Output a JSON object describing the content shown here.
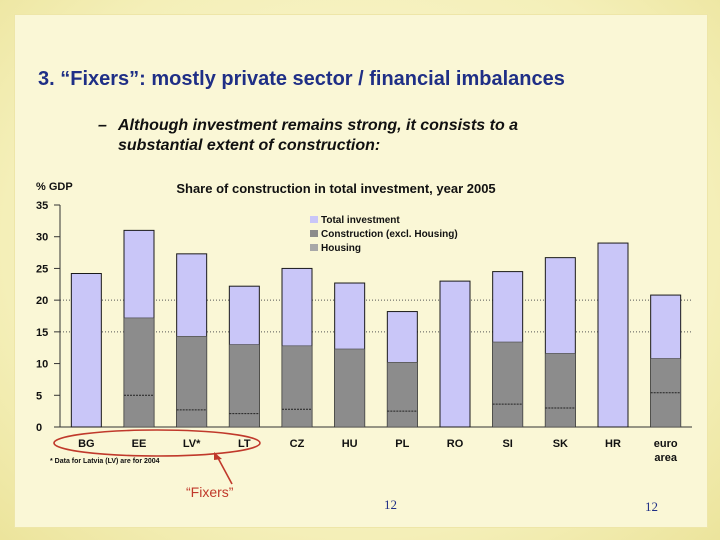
{
  "slide": {
    "title": "3. “Fixers”: mostly private sector / financial imbalances",
    "bullet_dash": "–",
    "bullet_text": "Although investment remains strong, it consists to a substantial extent of construction:",
    "fixers_label": "“Fixers”",
    "page_number_center": "12",
    "page_number_right": "12",
    "colors": {
      "title": "#1f2f86",
      "total": "#c9c6f8",
      "construction": "#8c8c8c",
      "housing": "#a8a8a8",
      "callout": "#c0392b"
    }
  },
  "chart_data": {
    "type": "bar",
    "title": "Share of construction in total investment, year 2005",
    "ylabel": "% GDP",
    "ylim": [
      0,
      35
    ],
    "yticks": [
      0,
      5,
      10,
      15,
      20,
      25,
      30,
      35
    ],
    "gridlines_at": [
      15,
      20
    ],
    "footnote": "* Data for Latvia (LV) are for 2004",
    "legend_position": "top-right",
    "categories": [
      "BG",
      "EE",
      "LV*",
      "LT",
      "CZ",
      "HU",
      "PL",
      "RO",
      "SI",
      "SK",
      "HR",
      "euro area"
    ],
    "highlighted_categories": [
      "BG",
      "EE",
      "LV*",
      "LT"
    ],
    "series": [
      {
        "name": "Total investment",
        "values": [
          24.2,
          31.0,
          27.3,
          22.2,
          25.0,
          22.7,
          18.2,
          23.0,
          24.5,
          26.7,
          29.0,
          20.8
        ]
      },
      {
        "name": "Construction (excl. Housing)",
        "values": [
          null,
          17.2,
          14.3,
          13.0,
          12.8,
          12.3,
          10.2,
          null,
          13.4,
          11.6,
          null,
          10.8
        ]
      },
      {
        "name": "Housing",
        "values": [
          null,
          5.0,
          2.7,
          2.1,
          2.8,
          null,
          2.5,
          null,
          3.6,
          3.0,
          null,
          5.4
        ]
      }
    ]
  }
}
